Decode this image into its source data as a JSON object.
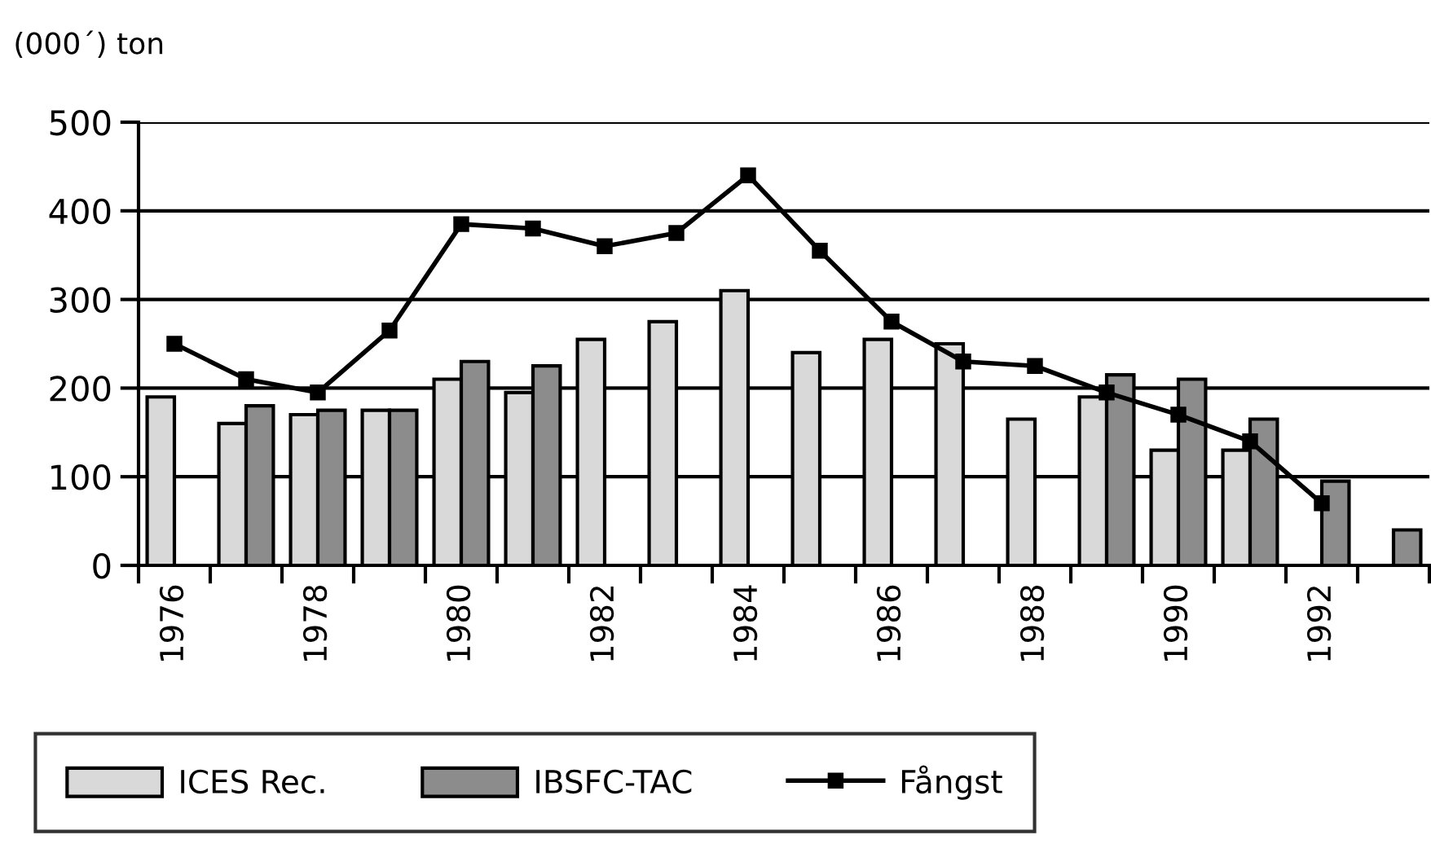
{
  "chart_data": {
    "type": "bar",
    "ylabel": "(000´) ton",
    "categories": [
      "1976",
      null,
      "1978",
      null,
      "1980",
      null,
      "1982",
      null,
      "1984",
      null,
      "1986",
      null,
      "1988",
      null,
      "1990",
      null,
      "1992",
      null
    ],
    "series": [
      {
        "name": "ICES Rec.",
        "color": "#d9d9d9",
        "values": [
          190,
          160,
          170,
          175,
          210,
          195,
          255,
          275,
          310,
          240,
          255,
          250,
          165,
          190,
          130,
          130,
          null,
          null
        ]
      },
      {
        "name": "IBSFC-TAC",
        "color": "#8c8c8c",
        "values": [
          null,
          180,
          175,
          175,
          230,
          225,
          null,
          null,
          null,
          null,
          null,
          null,
          null,
          215,
          210,
          165,
          95,
          40
        ]
      },
      {
        "name": "Fångst",
        "type": "line",
        "color": "#000000",
        "values": [
          250,
          210,
          195,
          265,
          385,
          380,
          360,
          375,
          440,
          355,
          275,
          230,
          225,
          195,
          170,
          140,
          70,
          null
        ]
      }
    ],
    "marker": "square",
    "ylim": [
      0,
      500
    ],
    "yticks": [
      0,
      100,
      200,
      300,
      400,
      500
    ],
    "grid": "y",
    "legend": "bottom"
  }
}
